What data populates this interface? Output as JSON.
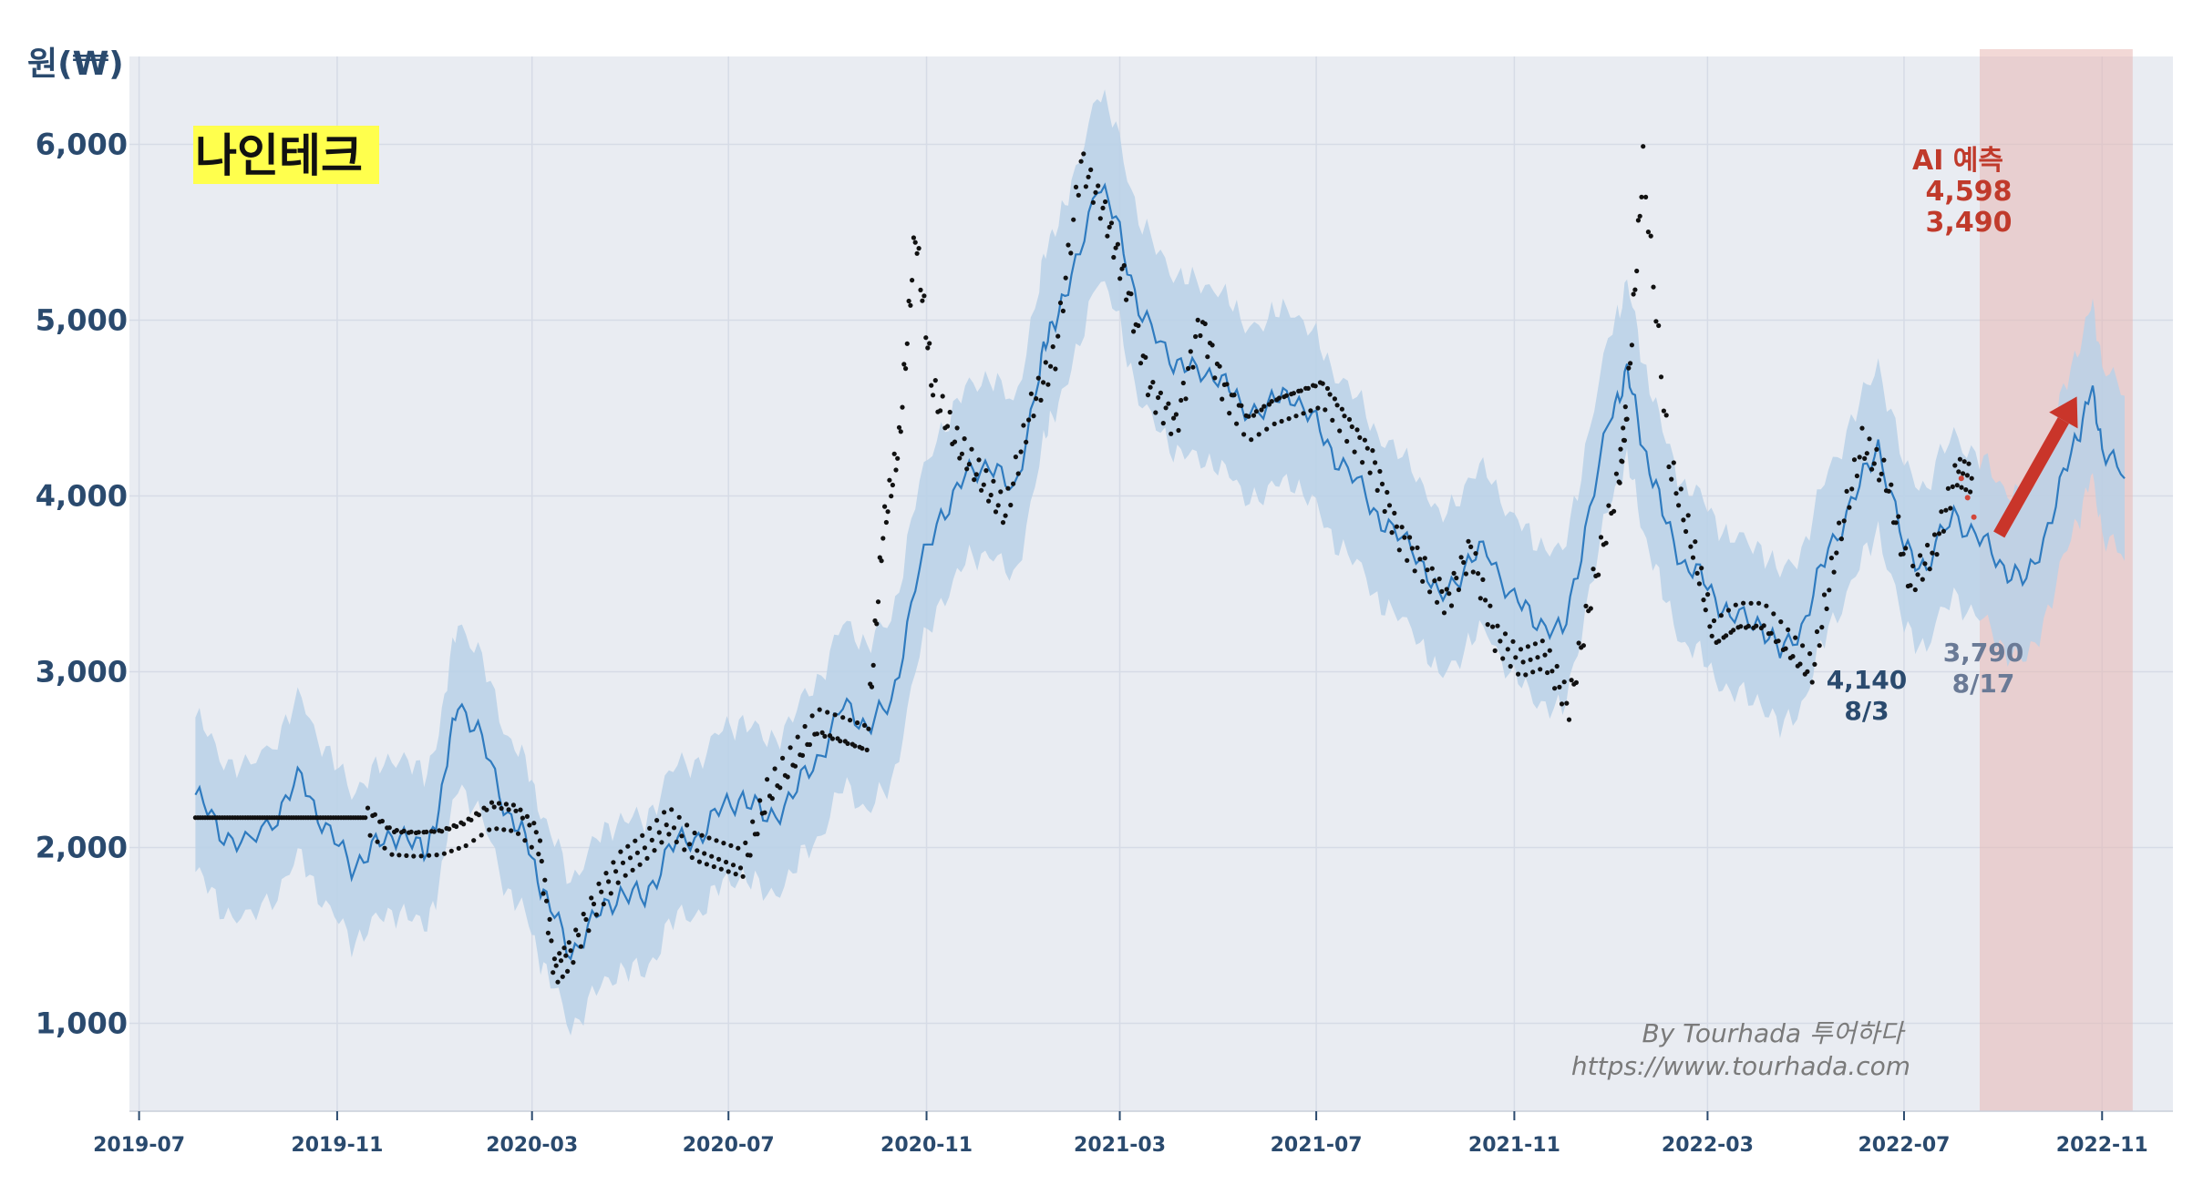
{
  "chart_data": {
    "type": "line",
    "title": "나인테크",
    "ylabel": "원(₩)",
    "xlabel": "",
    "ylim": [
      500,
      6500
    ],
    "y_ticks": [
      1000,
      2000,
      3000,
      4000,
      5000,
      6000
    ],
    "y_tick_labels": [
      "1,000",
      "2,000",
      "3,000",
      "4,000",
      "5,000",
      "6,000"
    ],
    "x_ticks": [
      "2019-07",
      "2019-11",
      "2020-03",
      "2020-07",
      "2020-11",
      "2021-03",
      "2021-07",
      "2021-11",
      "2022-03",
      "2022-07",
      "2022-11"
    ],
    "xlim": [
      "2019-06-25",
      "2022-12-15"
    ],
    "grid": true,
    "forecast_region": [
      "2022-08-17",
      "2022-11-20"
    ],
    "series": [
      {
        "kind": "forecast_line_with_band",
        "color": "#2f7bbf",
        "band_color": "#b8d1e8",
        "x": [
          "2019-08-05",
          "2019-08-20",
          "2019-09-05",
          "2019-09-25",
          "2019-10-10",
          "2019-10-25",
          "2019-11-10",
          "2019-11-25",
          "2019-12-10",
          "2019-12-25",
          "2020-01-05",
          "2020-01-15",
          "2020-01-30",
          "2020-02-15",
          "2020-02-28",
          "2020-03-10",
          "2020-03-25",
          "2020-04-10",
          "2020-04-25",
          "2020-05-10",
          "2020-05-25",
          "2020-06-10",
          "2020-06-25",
          "2020-07-10",
          "2020-07-25",
          "2020-08-10",
          "2020-08-25",
          "2020-09-10",
          "2020-09-25",
          "2020-10-10",
          "2020-10-25",
          "2020-11-10",
          "2020-11-25",
          "2020-12-10",
          "2020-12-25",
          "2021-01-10",
          "2021-01-18",
          "2021-01-30",
          "2021-02-15",
          "2021-03-01",
          "2021-03-15",
          "2021-04-01",
          "2021-04-15",
          "2021-05-01",
          "2021-05-15",
          "2021-06-01",
          "2021-06-15",
          "2021-07-01",
          "2021-07-15",
          "2021-08-01",
          "2021-08-15",
          "2021-09-01",
          "2021-09-15",
          "2021-10-01",
          "2021-10-15",
          "2021-11-01",
          "2021-11-15",
          "2021-12-01",
          "2021-12-15",
          "2022-01-01",
          "2022-01-10",
          "2022-01-20",
          "2022-02-01",
          "2022-02-15",
          "2022-03-01",
          "2022-03-15",
          "2022-04-01",
          "2022-04-15",
          "2022-05-01",
          "2022-05-15",
          "2022-06-01",
          "2022-06-15",
          "2022-07-01",
          "2022-07-15",
          "2022-08-01",
          "2022-08-17",
          "2022-09-01",
          "2022-09-15",
          "2022-10-01",
          "2022-10-15",
          "2022-10-25",
          "2022-11-01",
          "2022-11-15"
        ],
        "y": [
          2300,
          2100,
          2000,
          2200,
          2400,
          2100,
          1900,
          2000,
          2100,
          1950,
          2300,
          2850,
          2600,
          2200,
          2000,
          1700,
          1400,
          1600,
          1750,
          1700,
          2000,
          2050,
          2200,
          2300,
          2150,
          2300,
          2500,
          2800,
          2700,
          2800,
          3500,
          3900,
          4100,
          4200,
          4000,
          4700,
          5000,
          5200,
          5800,
          5500,
          5000,
          4800,
          4700,
          4700,
          4500,
          4500,
          4600,
          4400,
          4200,
          4000,
          3800,
          3700,
          3400,
          3600,
          3700,
          3400,
          3300,
          3200,
          3800,
          4500,
          4700,
          4300,
          3900,
          3600,
          3500,
          3300,
          3300,
          3100,
          3300,
          3700,
          4000,
          4300,
          3700,
          3600,
          3900,
          3750,
          3600,
          3500,
          3900,
          4300,
          4600,
          4300,
          4100
        ],
        "band_halfwidth": [
          440,
          430,
          430,
          440,
          450,
          440,
          430,
          430,
          440,
          430,
          440,
          460,
          450,
          440,
          430,
          420,
          420,
          430,
          430,
          430,
          430,
          430,
          440,
          440,
          440,
          440,
          450,
          460,
          470,
          470,
          480,
          490,
          490,
          500,
          500,
          510,
          520,
          520,
          530,
          520,
          510,
          500,
          500,
          500,
          490,
          490,
          490,
          480,
          480,
          470,
          470,
          460,
          450,
          460,
          460,
          450,
          450,
          450,
          460,
          480,
          500,
          480,
          460,
          450,
          450,
          440,
          440,
          440,
          440,
          450,
          460,
          470,
          460,
          450,
          460,
          450,
          460,
          460,
          470,
          480,
          490,
          480,
          470
        ]
      },
      {
        "kind": "actual_price_dots",
        "color": "#111111",
        "x": [
          "2019-08-05",
          "2019-08-20",
          "2019-09-05",
          "2019-09-20",
          "2019-10-05",
          "2019-10-20",
          "2019-11-05",
          "2019-11-20",
          "2019-12-05",
          "2019-12-20",
          "2020-01-05",
          "2020-01-20",
          "2020-02-05",
          "2020-02-20",
          "2020-03-05",
          "2020-03-15",
          "2020-03-25",
          "2020-04-10",
          "2020-04-25",
          "2020-05-10",
          "2020-05-25",
          "2020-06-10",
          "2020-06-25",
          "2020-07-10",
          "2020-07-25",
          "2020-08-10",
          "2020-08-25",
          "2020-09-10",
          "2020-09-25",
          "2020-10-05",
          "2020-10-15",
          "2020-10-25",
          "2020-11-05",
          "2020-11-20",
          "2020-12-05",
          "2020-12-20",
          "2021-01-05",
          "2021-01-20",
          "2021-02-05",
          "2021-02-20",
          "2021-03-05",
          "2021-03-20",
          "2021-04-05",
          "2021-04-20",
          "2021-05-05",
          "2021-05-20",
          "2021-06-05",
          "2021-06-20",
          "2021-07-05",
          "2021-07-20",
          "2021-08-05",
          "2021-08-20",
          "2021-09-05",
          "2021-09-20",
          "2021-10-05",
          "2021-10-20",
          "2021-11-05",
          "2021-11-20",
          "2021-12-05",
          "2021-12-20",
          "2022-01-05",
          "2022-01-10",
          "2022-01-20",
          "2022-02-05",
          "2022-02-20",
          "2022-03-05",
          "2022-03-20",
          "2022-04-05",
          "2022-04-20",
          "2022-05-05",
          "2022-05-20",
          "2022-06-05",
          "2022-06-20",
          "2022-07-05",
          "2022-07-20",
          "2022-08-03",
          "2022-08-12"
        ],
        "y": [
          2170,
          2170,
          2170,
          2170,
          2170,
          2170,
          2170,
          2170,
          2050,
          2040,
          2050,
          2100,
          2200,
          2180,
          2050,
          1300,
          1400,
          1700,
          1900,
          2000,
          2150,
          2000,
          1950,
          1900,
          2300,
          2500,
          2700,
          2650,
          2600,
          3800,
          4300,
          5500,
          4600,
          4300,
          4100,
          3900,
          4500,
          4800,
          5900,
          5600,
          5200,
          4600,
          4400,
          5000,
          4600,
          4400,
          4500,
          4550,
          4600,
          4400,
          4200,
          3800,
          3600,
          3400,
          3700,
          3200,
          3050,
          3100,
          2800,
          3500,
          4100,
          4500,
          5900,
          4200,
          3700,
          3200,
          3300,
          3300,
          3150,
          3000,
          3700,
          4300,
          4100,
          3500,
          3700,
          4140,
          4100
        ]
      }
    ],
    "annotations": [
      {
        "value": "4,140",
        "date": "8/3"
      },
      {
        "value": "3,790",
        "date": "8/17"
      }
    ],
    "prediction": {
      "label": "AI 예측",
      "high": "4,598",
      "low": "3,490"
    },
    "watermark": {
      "line1": "By Tourhada 투어하다",
      "line2": "https://www.tourhada.com"
    },
    "colors": {
      "forecast_band": "#c43c2c",
      "arrow": "#c9352a"
    }
  }
}
